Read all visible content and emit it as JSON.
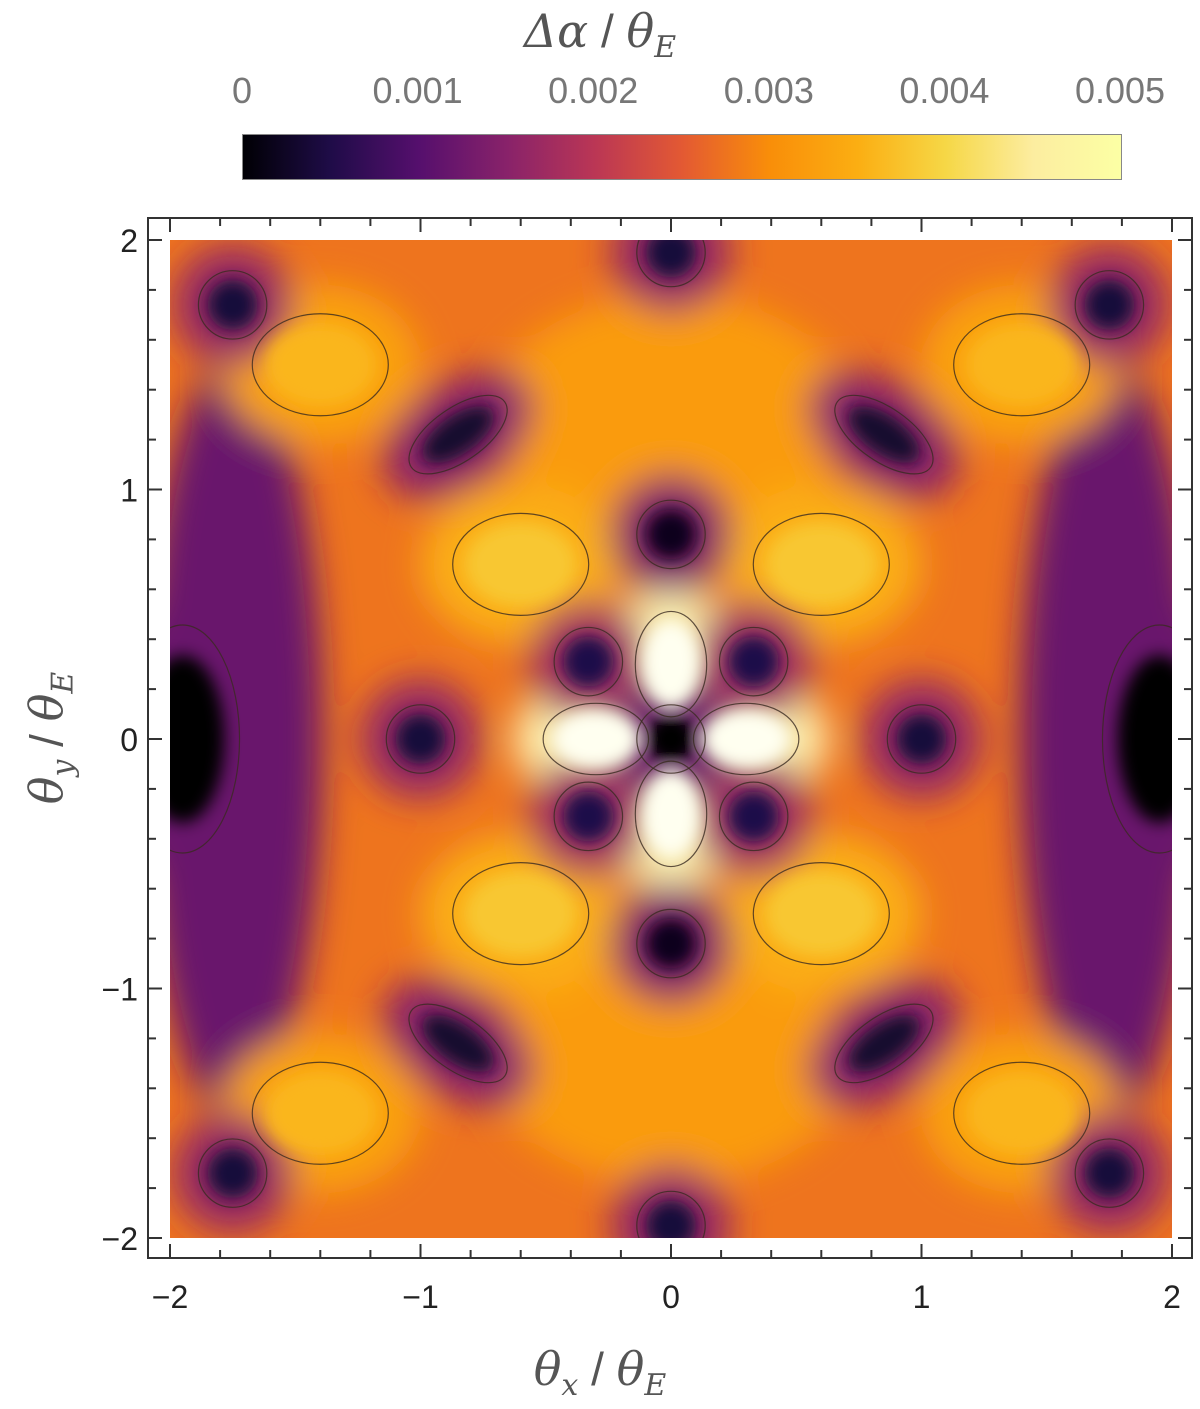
{
  "colorbar": {
    "title_symbol": "Δα",
    "title_sep": " / ",
    "title_theta": "θ",
    "title_sub": "E",
    "ticks": [
      "0",
      "0.001",
      "0.002",
      "0.003",
      "0.004",
      "0.005"
    ],
    "range": [
      0,
      0.005
    ]
  },
  "axes": {
    "x_label_theta": "θ",
    "x_label_sub": "x",
    "y_label_theta": "θ",
    "y_label_sub": "y",
    "label_sep": " / ",
    "label_theta_e": "θ",
    "label_sub_e": "E"
  },
  "chart_data": {
    "type": "heatmap",
    "title": "Δα / θE",
    "xlabel": "θx / θE",
    "ylabel": "θy / θE",
    "xlim": [
      -2,
      2
    ],
    "ylim": [
      -2,
      2
    ],
    "x_ticks": [
      "−2",
      "−1",
      "0",
      "1",
      "2"
    ],
    "y_ticks": [
      "2",
      "1",
      "0",
      "−1",
      "−2"
    ],
    "x_tick_values": [
      -2,
      -1,
      0,
      1,
      2
    ],
    "y_tick_values": [
      2,
      1,
      0,
      -1,
      -2
    ],
    "colorscale": "inferno",
    "value_range": [
      0,
      0.005
    ],
    "colors": {
      "low": "#000004",
      "mid_low": "#550f6d",
      "mid": "#e35933",
      "mid_high": "#fbae12",
      "high": "#fcffa4"
    },
    "features": {
      "minima": [
        {
          "x": 0,
          "y": 0,
          "value": 0.0
        },
        {
          "x": -1.0,
          "y": 0,
          "value": 0.0004
        },
        {
          "x": 1.0,
          "y": 0,
          "value": 0.0004
        },
        {
          "x": 0,
          "y": 0.82,
          "value": 0.0002
        },
        {
          "x": 0,
          "y": -0.82,
          "value": 0.0002
        },
        {
          "x": -0.33,
          "y": 0.31,
          "value": 0.0005
        },
        {
          "x": 0.33,
          "y": 0.31,
          "value": 0.0005
        },
        {
          "x": -0.33,
          "y": -0.31,
          "value": 0.0005
        },
        {
          "x": 0.33,
          "y": -0.31,
          "value": 0.0005
        },
        {
          "x": -0.85,
          "y": 1.22,
          "value": 0.0003
        },
        {
          "x": 0.85,
          "y": 1.22,
          "value": 0.0003
        },
        {
          "x": -0.85,
          "y": -1.22,
          "value": 0.0003
        },
        {
          "x": 0.85,
          "y": -1.22,
          "value": 0.0003
        },
        {
          "x": -1.95,
          "y": 0,
          "value": 0.0
        },
        {
          "x": 1.95,
          "y": 0,
          "value": 0.0
        },
        {
          "x": -1.75,
          "y": 1.74,
          "value": 0.0004
        },
        {
          "x": 1.75,
          "y": 1.74,
          "value": 0.0004
        },
        {
          "x": -1.75,
          "y": -1.74,
          "value": 0.0004
        },
        {
          "x": 1.75,
          "y": -1.74,
          "value": 0.0004
        },
        {
          "x": 0,
          "y": 1.95,
          "value": 0.0004
        },
        {
          "x": 0,
          "y": -1.95,
          "value": 0.0004
        }
      ],
      "maxima": [
        {
          "x": 0,
          "y": 0.3,
          "value": 0.005
        },
        {
          "x": 0,
          "y": -0.3,
          "value": 0.005
        },
        {
          "x": -0.3,
          "y": 0,
          "value": 0.005
        },
        {
          "x": 0.3,
          "y": 0,
          "value": 0.005
        },
        {
          "x": -0.6,
          "y": 0.7,
          "value": 0.0038
        },
        {
          "x": 0.6,
          "y": 0.7,
          "value": 0.0038
        },
        {
          "x": -0.6,
          "y": -0.7,
          "value": 0.0038
        },
        {
          "x": 0.6,
          "y": -0.7,
          "value": 0.0038
        },
        {
          "x": -1.4,
          "y": 1.5,
          "value": 0.0036
        },
        {
          "x": 1.4,
          "y": 1.5,
          "value": 0.0036
        },
        {
          "x": -1.4,
          "y": -1.5,
          "value": 0.0036
        },
        {
          "x": 1.4,
          "y": -1.5,
          "value": 0.0036
        }
      ]
    },
    "contours": true,
    "grid": false
  }
}
